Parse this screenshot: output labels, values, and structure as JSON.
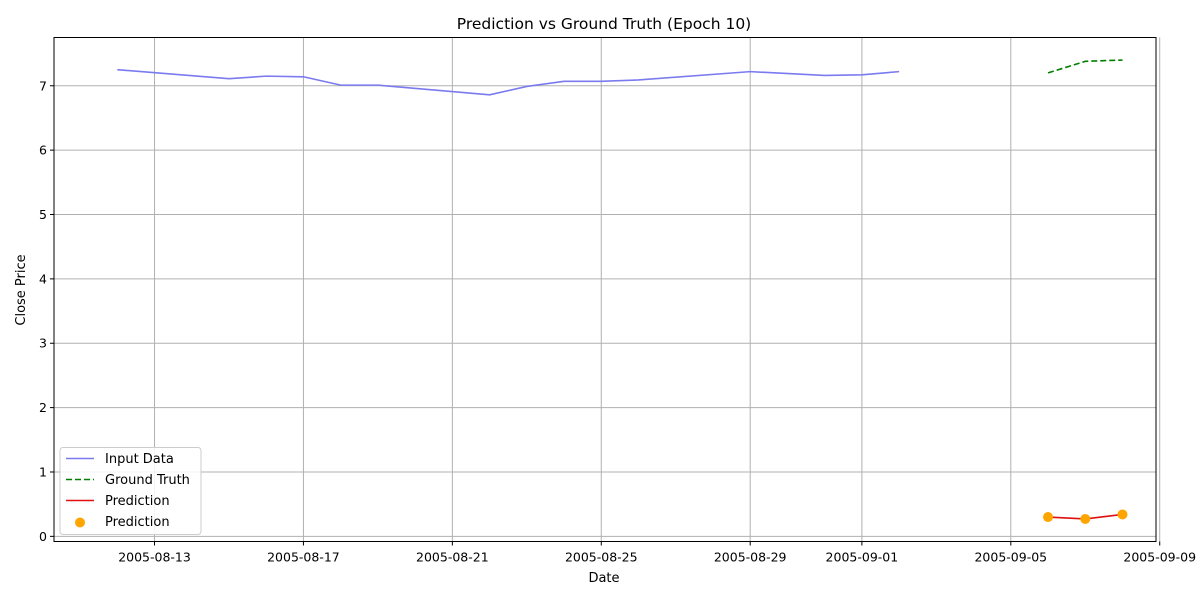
{
  "chart_data": {
    "type": "line",
    "title": "Prediction vs Ground Truth (Epoch 10)",
    "xlabel": "Date",
    "ylabel": "Close Price",
    "xlim": [
      "2005-08-10",
      "2005-09-09"
    ],
    "ylim": [
      0,
      7.75
    ],
    "x_ticks": [
      "2005-08-13",
      "2005-08-17",
      "2005-08-21",
      "2005-08-25",
      "2005-08-29",
      "2005-09-01",
      "2005-09-05",
      "2005-09-09"
    ],
    "y_ticks": [
      0,
      1,
      2,
      3,
      4,
      5,
      6,
      7
    ],
    "grid": true,
    "legend_position": "lower-left",
    "series": [
      {
        "name": "Input Data",
        "kind": "line",
        "color": "#7b7bf0",
        "dash": "solid",
        "x": [
          "2005-08-12",
          "2005-08-15",
          "2005-08-16",
          "2005-08-17",
          "2005-08-18",
          "2005-08-19",
          "2005-08-22",
          "2005-08-23",
          "2005-08-24",
          "2005-08-25",
          "2005-08-26",
          "2005-08-29",
          "2005-08-31",
          "2005-09-01",
          "2005-09-02"
        ],
        "y": [
          7.25,
          7.11,
          7.15,
          7.14,
          7.01,
          7.01,
          6.86,
          6.99,
          7.07,
          7.07,
          7.09,
          7.22,
          7.16,
          7.17,
          7.22
        ]
      },
      {
        "name": "Ground Truth",
        "kind": "line",
        "color": "#008000",
        "dash": "dashed",
        "x": [
          "2005-09-06",
          "2005-09-07",
          "2005-09-08"
        ],
        "y": [
          7.2,
          7.38,
          7.4
        ]
      },
      {
        "name": "Prediction",
        "kind": "line",
        "color": "#e01010",
        "dash": "solid",
        "x": [
          "2005-09-06",
          "2005-09-07",
          "2005-09-08"
        ],
        "y": [
          0.3,
          0.27,
          0.34
        ]
      },
      {
        "name": "Prediction",
        "kind": "scatter",
        "color": "#ffa500",
        "x": [
          "2005-09-06",
          "2005-09-07",
          "2005-09-08"
        ],
        "y": [
          0.3,
          0.27,
          0.34
        ]
      }
    ]
  }
}
